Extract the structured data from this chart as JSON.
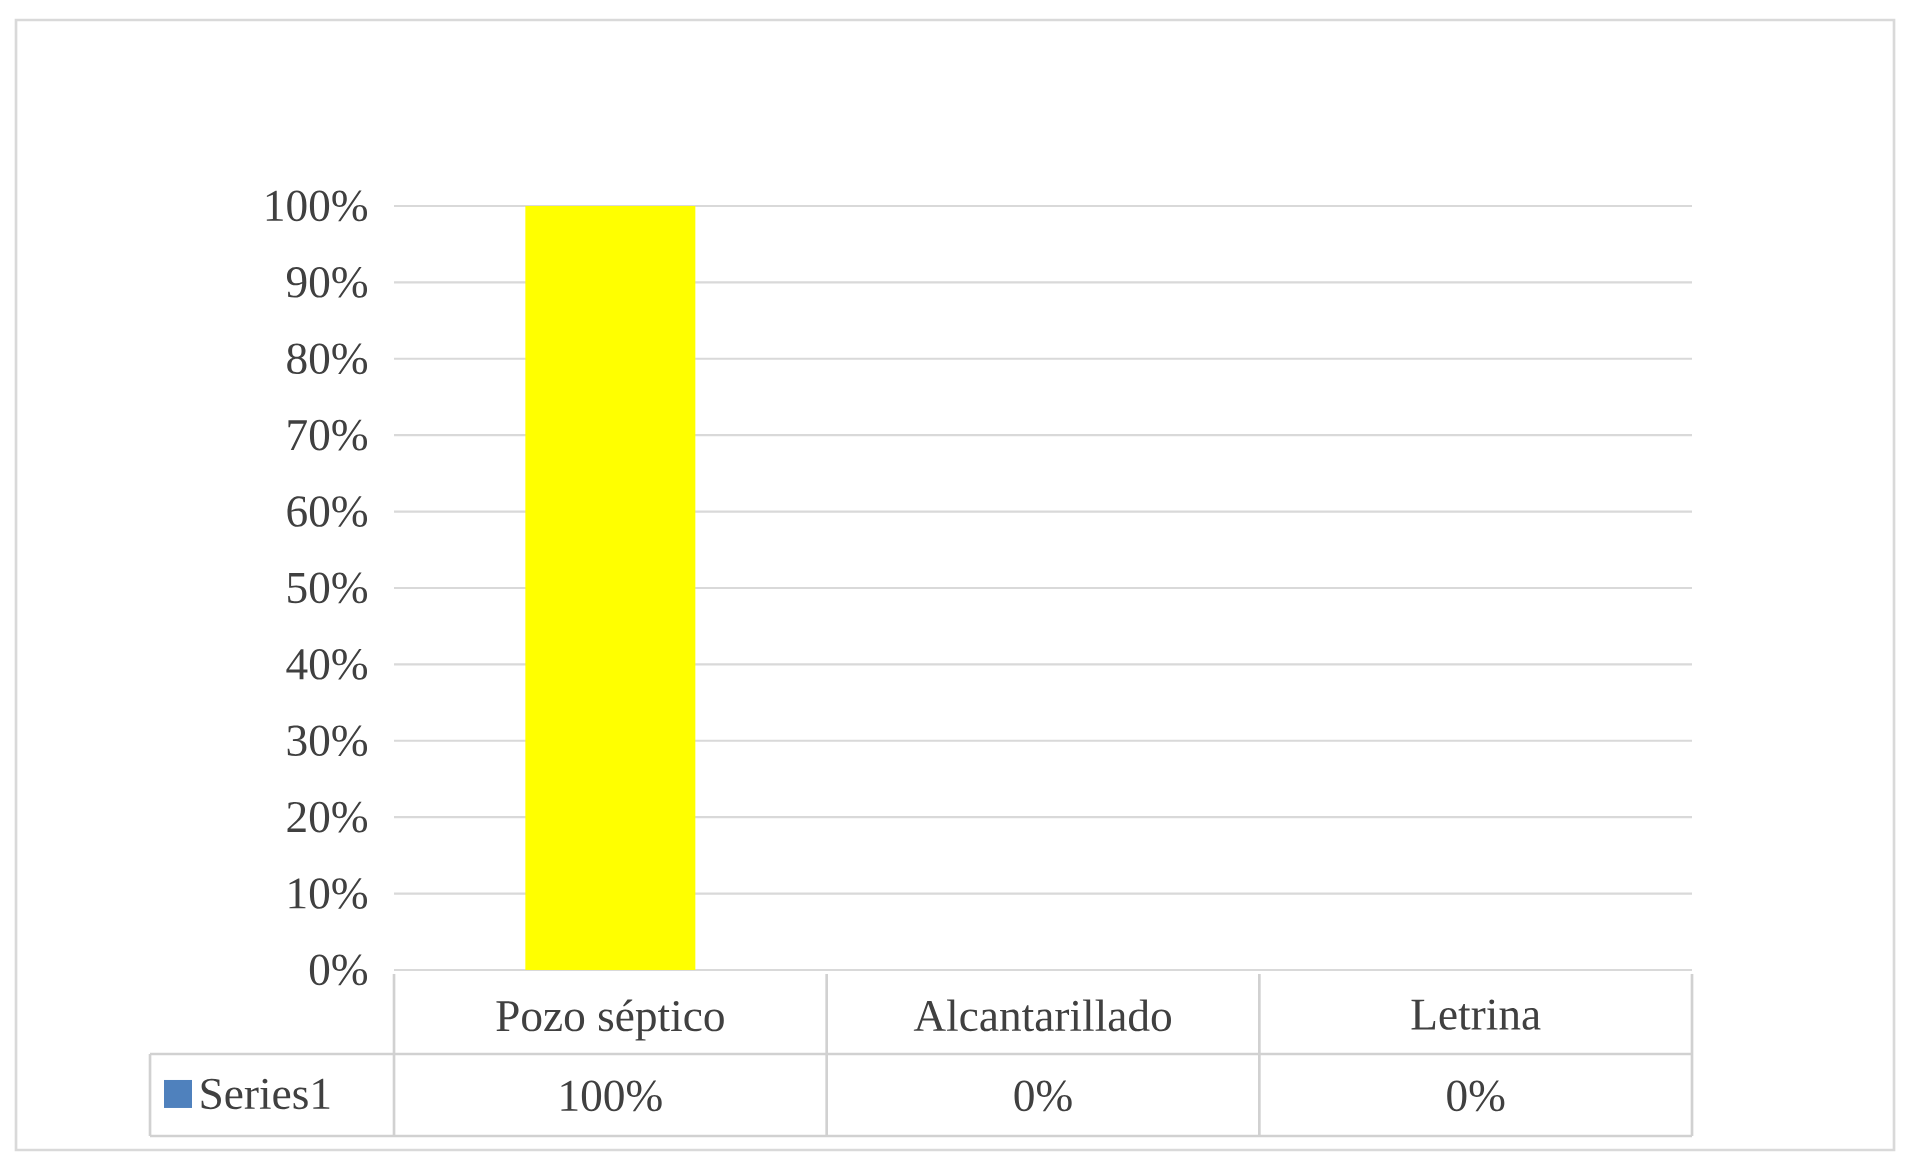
{
  "chart_data": {
    "type": "bar",
    "categories": [
      "Pozo séptico",
      "Alcantarillado",
      "Letrina"
    ],
    "series": [
      {
        "name": "Series1",
        "color": "#4f81bd",
        "colors": [
          "#ffff00",
          "#c0703a",
          "#3a6090"
        ],
        "values": [
          100,
          0,
          0
        ],
        "value_labels": [
          "100%",
          "0%",
          "0%"
        ]
      }
    ],
    "ylim": [
      0,
      100
    ],
    "yticks": [
      {
        "value": 0,
        "label": "0%"
      },
      {
        "value": 10,
        "label": "10%"
      },
      {
        "value": 20,
        "label": "20%"
      },
      {
        "value": 30,
        "label": "30%"
      },
      {
        "value": 40,
        "label": "40%"
      },
      {
        "value": 50,
        "label": "50%"
      },
      {
        "value": 60,
        "label": "60%"
      },
      {
        "value": 70,
        "label": "70%"
      },
      {
        "value": 80,
        "label": "80%"
      },
      {
        "value": 90,
        "label": "90%"
      },
      {
        "value": 100,
        "label": "100%"
      }
    ],
    "grid": "y",
    "legend": "bottom"
  }
}
